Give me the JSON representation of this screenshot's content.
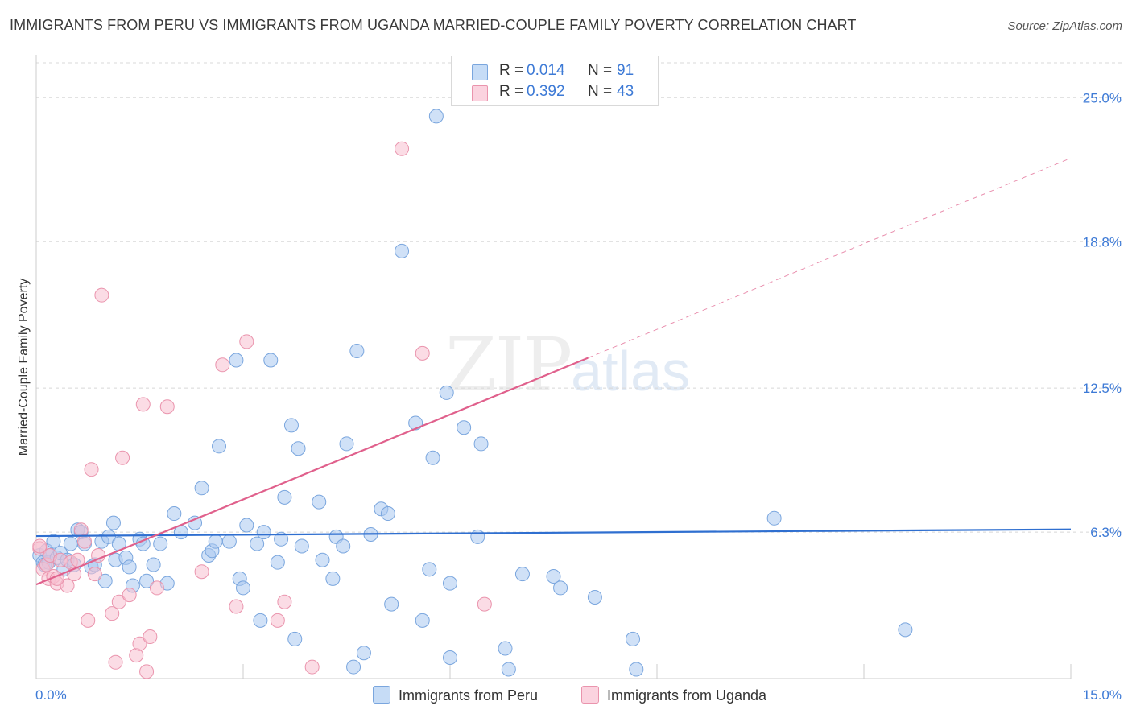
{
  "chart_data": {
    "type": "scatter",
    "title": "IMMIGRANTS FROM PERU VS IMMIGRANTS FROM UGANDA MARRIED-COUPLE FAMILY POVERTY CORRELATION CHART",
    "source": "Source: ZipAtlas.com",
    "ylabel": "Married-Couple Family Poverty",
    "xlabel": "",
    "xlim": [
      0,
      15
    ],
    "ylim": [
      0,
      26.5
    ],
    "x_tick_labels": {
      "min": "0.0%",
      "max": "15.0%"
    },
    "y_ticks": [
      {
        "value": 6.3,
        "label": "6.3%"
      },
      {
        "value": 12.5,
        "label": "12.5%"
      },
      {
        "value": 18.8,
        "label": "18.8%"
      },
      {
        "value": 25.0,
        "label": "25.0%"
      }
    ],
    "watermark": {
      "main": "ZIP",
      "sub": "atlas"
    },
    "legend": {
      "r_label": "R =",
      "n_label": "N =",
      "entries": [
        {
          "name": "Immigrants from Peru",
          "r": "0.014",
          "n": "91",
          "color": "#aac8f0",
          "stroke": "#7aa6de"
        },
        {
          "name": "Immigrants from Uganda",
          "r": "0.392",
          "n": "43",
          "color": "#f7c0d0",
          "stroke": "#ea94ad"
        }
      ]
    },
    "series": [
      {
        "name": "Immigrants from Peru",
        "fill": "#aac8f0",
        "stroke": "#7aa6de",
        "trend": {
          "x0": 0,
          "y0": 6.13,
          "x1": 15,
          "y1": 6.42,
          "color": "#2f6fd0",
          "dashed_to": null
        },
        "points": [
          [
            0.05,
            5.3
          ],
          [
            0.1,
            5.0
          ],
          [
            0.12,
            4.9
          ],
          [
            0.15,
            5.5
          ],
          [
            0.18,
            5.0
          ],
          [
            0.2,
            5.3
          ],
          [
            0.25,
            5.9
          ],
          [
            0.3,
            5.2
          ],
          [
            0.35,
            5.4
          ],
          [
            0.4,
            4.7
          ],
          [
            0.45,
            5.1
          ],
          [
            0.5,
            5.8
          ],
          [
            0.55,
            4.9
          ],
          [
            0.6,
            6.4
          ],
          [
            0.65,
            6.3
          ],
          [
            0.7,
            5.8
          ],
          [
            0.8,
            4.8
          ],
          [
            0.85,
            4.9
          ],
          [
            0.95,
            5.9
          ],
          [
            1.0,
            4.2
          ],
          [
            1.05,
            6.1
          ],
          [
            1.12,
            6.7
          ],
          [
            1.15,
            5.1
          ],
          [
            1.2,
            5.8
          ],
          [
            1.3,
            5.2
          ],
          [
            1.35,
            4.8
          ],
          [
            1.4,
            4.0
          ],
          [
            1.5,
            6.0
          ],
          [
            1.55,
            5.8
          ],
          [
            1.6,
            4.2
          ],
          [
            1.7,
            4.9
          ],
          [
            1.8,
            5.8
          ],
          [
            1.9,
            4.1
          ],
          [
            2.0,
            7.1
          ],
          [
            2.1,
            6.3
          ],
          [
            2.3,
            6.7
          ],
          [
            2.4,
            8.2
          ],
          [
            2.5,
            5.3
          ],
          [
            2.55,
            5.5
          ],
          [
            2.6,
            5.9
          ],
          [
            2.65,
            10.0
          ],
          [
            2.8,
            5.9
          ],
          [
            2.9,
            13.7
          ],
          [
            2.95,
            4.3
          ],
          [
            3.0,
            3.9
          ],
          [
            3.05,
            6.6
          ],
          [
            3.2,
            5.8
          ],
          [
            3.25,
            2.5
          ],
          [
            3.3,
            6.3
          ],
          [
            3.4,
            13.7
          ],
          [
            3.5,
            5.0
          ],
          [
            3.55,
            6.0
          ],
          [
            3.6,
            7.8
          ],
          [
            3.7,
            10.9
          ],
          [
            3.75,
            1.7
          ],
          [
            3.8,
            9.9
          ],
          [
            3.85,
            5.7
          ],
          [
            4.1,
            7.6
          ],
          [
            4.15,
            5.1
          ],
          [
            4.3,
            4.3
          ],
          [
            4.35,
            6.1
          ],
          [
            4.45,
            5.7
          ],
          [
            4.5,
            10.1
          ],
          [
            4.6,
            0.5
          ],
          [
            4.65,
            14.1
          ],
          [
            4.75,
            1.1
          ],
          [
            4.85,
            6.2
          ],
          [
            5.0,
            7.3
          ],
          [
            5.1,
            7.1
          ],
          [
            5.15,
            3.2
          ],
          [
            5.3,
            18.4
          ],
          [
            5.5,
            11.0
          ],
          [
            5.6,
            2.5
          ],
          [
            5.7,
            4.7
          ],
          [
            5.75,
            9.5
          ],
          [
            5.8,
            24.2
          ],
          [
            5.95,
            12.3
          ],
          [
            6.0,
            4.1
          ],
          [
            6.0,
            0.9
          ],
          [
            6.2,
            10.8
          ],
          [
            6.4,
            6.1
          ],
          [
            6.45,
            10.1
          ],
          [
            6.8,
            1.3
          ],
          [
            6.85,
            0.4
          ],
          [
            7.05,
            4.5
          ],
          [
            7.5,
            4.4
          ],
          [
            7.6,
            3.9
          ],
          [
            8.1,
            3.5
          ],
          [
            8.65,
            1.7
          ],
          [
            8.7,
            0.4
          ],
          [
            10.7,
            6.9
          ],
          [
            12.6,
            2.1
          ]
        ]
      },
      {
        "name": "Immigrants from Uganda",
        "fill": "#f7c0d0",
        "stroke": "#ea94ad",
        "trend": {
          "x0": 0,
          "y0": 4.05,
          "x1": 8.0,
          "y1": 13.8,
          "color": "#e0608c",
          "dashed_to": {
            "x": 15,
            "y": 22.4
          }
        },
        "points": [
          [
            0.05,
            5.6
          ],
          [
            0.1,
            4.7
          ],
          [
            0.15,
            4.9
          ],
          [
            0.18,
            4.3
          ],
          [
            0.2,
            5.3
          ],
          [
            0.25,
            4.4
          ],
          [
            0.3,
            4.1
          ],
          [
            0.35,
            5.1
          ],
          [
            0.45,
            4.0
          ],
          [
            0.5,
            5.0
          ],
          [
            0.55,
            4.5
          ],
          [
            0.6,
            5.1
          ],
          [
            0.65,
            6.4
          ],
          [
            0.7,
            5.9
          ],
          [
            0.75,
            2.5
          ],
          [
            0.8,
            9.0
          ],
          [
            0.85,
            4.5
          ],
          [
            0.9,
            5.3
          ],
          [
            0.95,
            16.5
          ],
          [
            1.1,
            2.8
          ],
          [
            1.15,
            0.7
          ],
          [
            1.2,
            3.3
          ],
          [
            1.25,
            9.5
          ],
          [
            1.35,
            3.6
          ],
          [
            1.45,
            1.0
          ],
          [
            1.5,
            1.5
          ],
          [
            1.55,
            11.8
          ],
          [
            1.6,
            0.3
          ],
          [
            1.65,
            1.8
          ],
          [
            1.75,
            3.9
          ],
          [
            1.9,
            11.7
          ],
          [
            2.4,
            4.6
          ],
          [
            2.7,
            13.5
          ],
          [
            2.9,
            3.1
          ],
          [
            3.05,
            14.5
          ],
          [
            3.5,
            2.5
          ],
          [
            3.6,
            3.3
          ],
          [
            4.0,
            0.5
          ],
          [
            5.3,
            22.8
          ],
          [
            5.6,
            14.0
          ],
          [
            6.5,
            3.2
          ],
          [
            0.05,
            5.7
          ],
          [
            0.3,
            4.3
          ]
        ]
      }
    ]
  }
}
